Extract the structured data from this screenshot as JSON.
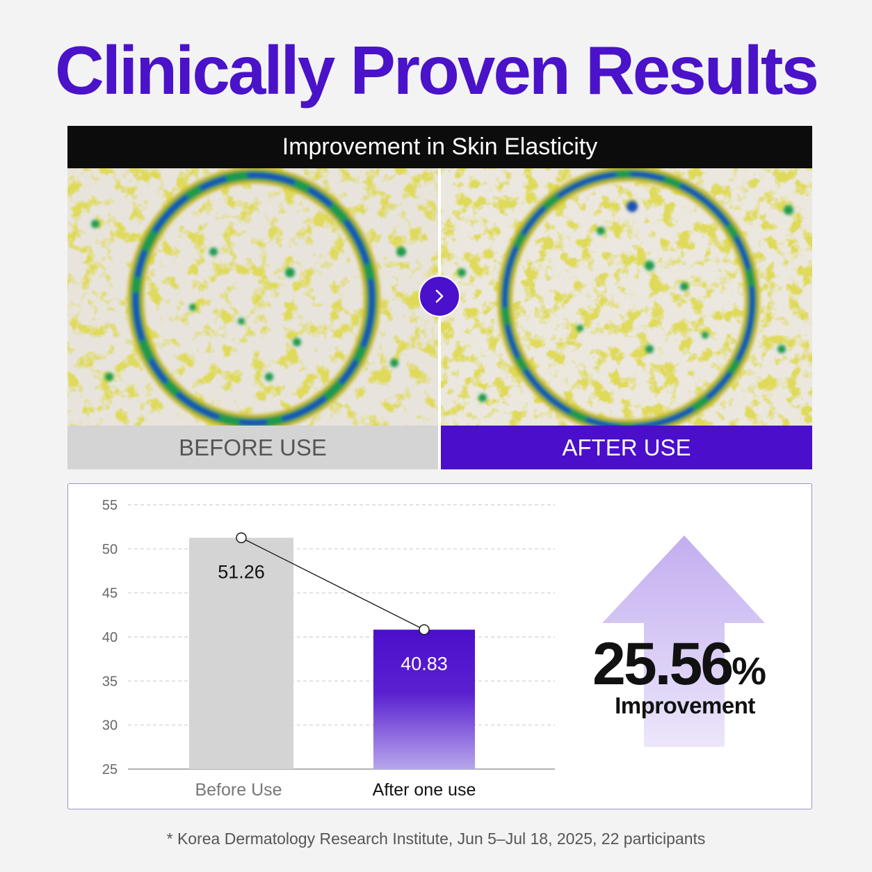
{
  "headline": "Clinically Proven Results",
  "panel": {
    "title": "Improvement in Skin Elasticity",
    "before_label": "BEFORE USE",
    "after_label": "AFTER USE"
  },
  "icons": {
    "next": "chevron-right-icon",
    "up": "arrow-up-icon"
  },
  "colors": {
    "brand": "#4a12c9",
    "before_bar": "#d4d4d4",
    "after_bar_top": "#4b0fcb",
    "after_bar_bottom": "#b7a6ec",
    "arrow": "#c7b3f0"
  },
  "improvement": {
    "value": "25.56",
    "unit": "%",
    "label": "Improvement"
  },
  "chart_data": {
    "type": "bar",
    "categories": [
      "Before Use",
      "After one use"
    ],
    "values": [
      51.26,
      40.83
    ],
    "value_labels": [
      "51.26",
      "40.83"
    ],
    "ylim": [
      25,
      55
    ],
    "yticks": [
      25,
      30,
      35,
      40,
      45,
      50,
      55
    ],
    "grid": true,
    "connecting_line": true,
    "title": "",
    "xlabel": "",
    "ylabel": ""
  },
  "footnote": "* Korea Dermatology Research Institute, Jun 5–Jul 18, 2025, 22 participants"
}
